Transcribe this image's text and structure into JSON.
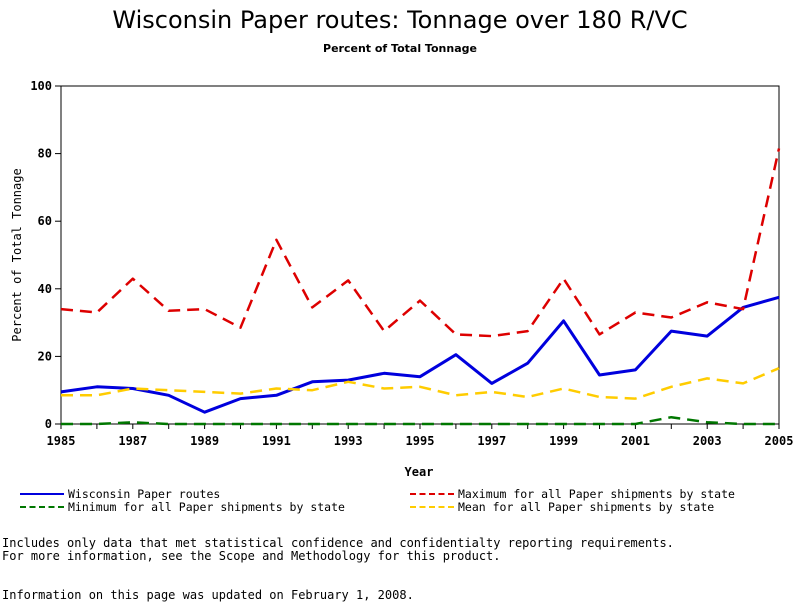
{
  "chart_data": {
    "type": "line",
    "title": "Wisconsin Paper routes: Tonnage over 180 R/VC",
    "subtitle": "Percent of Total Tonnage",
    "xlabel": "Year",
    "ylabel": "Percent of Total Tonnage",
    "xlim": [
      1985,
      2005
    ],
    "ylim": [
      0,
      100
    ],
    "x_ticks": [
      "1985",
      "1987",
      "1989",
      "1991",
      "1993",
      "1995",
      "1997",
      "1999",
      "2001",
      "2003",
      "2005"
    ],
    "y_ticks": [
      "0",
      "20",
      "40",
      "60",
      "80",
      "100"
    ],
    "x": [
      1985,
      1986,
      1987,
      1988,
      1989,
      1990,
      1991,
      1992,
      1993,
      1994,
      1995,
      1996,
      1997,
      1998,
      1999,
      2000,
      2001,
      2002,
      2003,
      2004,
      2005
    ],
    "grid": false,
    "legend_position": "bottom",
    "series": [
      {
        "name": "Wisconsin Paper routes",
        "color": "#0000dd",
        "style": "solid",
        "values": [
          9.5,
          11,
          10.5,
          8.5,
          3.5,
          7.5,
          8.5,
          12.5,
          13,
          15,
          14,
          20.5,
          12,
          18,
          30.5,
          14.5,
          16,
          27.5,
          26,
          34.5,
          37.5
        ]
      },
      {
        "name": "Maximum for all Paper shipments by state",
        "color": "#dd0000",
        "style": "dashed",
        "values": [
          34,
          33,
          43,
          33.5,
          34,
          28.5,
          54.5,
          34.5,
          42.5,
          27.5,
          36.5,
          26.5,
          26,
          27.5,
          43,
          26.5,
          33,
          31.5,
          36,
          34,
          81.5
        ]
      },
      {
        "name": "Minimum for all Paper shipments by state",
        "color": "#007700",
        "style": "dashed",
        "values": [
          0,
          0,
          0.5,
          0,
          0,
          0,
          0,
          0,
          0,
          0,
          0,
          0,
          0,
          0,
          0,
          0,
          0,
          2,
          0.5,
          0,
          0
        ]
      },
      {
        "name": "Mean for all Paper shipments by state",
        "color": "#ffcc00",
        "style": "dashed",
        "values": [
          8.5,
          8.5,
          10.5,
          10,
          9.5,
          9,
          10.5,
          10,
          12.5,
          10.5,
          11,
          8.5,
          9.5,
          8,
          10.5,
          8,
          7.5,
          11,
          13.5,
          12,
          16.5
        ]
      }
    ]
  },
  "legend": [
    "Wisconsin Paper routes",
    "Maximum for all Paper shipments by state",
    "Minimum for all Paper shipments by state",
    "Mean for all Paper shipments by state"
  ],
  "footnotes": {
    "line1": "Includes only data that met statistical confidence and confidentialty reporting requirements.",
    "line2": "For more information, see the Scope and Methodology for this product.",
    "line3": "Information on this page was updated on February 1, 2008."
  }
}
